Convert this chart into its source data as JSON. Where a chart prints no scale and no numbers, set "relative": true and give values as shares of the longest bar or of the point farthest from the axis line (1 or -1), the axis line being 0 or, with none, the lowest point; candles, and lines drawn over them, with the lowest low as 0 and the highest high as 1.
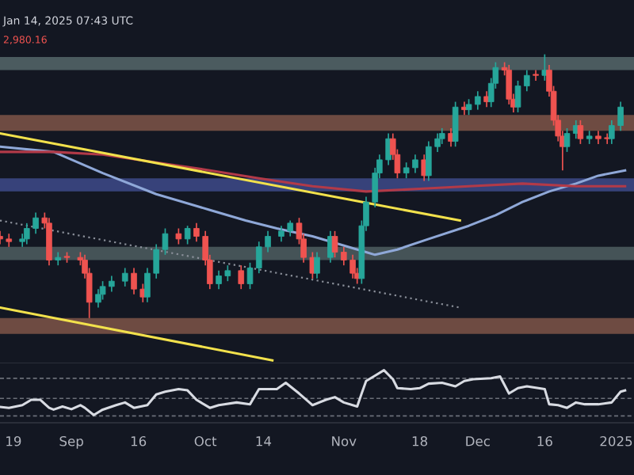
{
  "chart_data": [
    {
      "type": "candlestick",
      "relative": true,
      "annotations": [
        "Jan 14, 2025 07:43 UTC",
        "2,980.16"
      ],
      "tick_labels": false,
      "grid": false,
      "xlim": [
        "2024-08-16",
        "2025-01-05"
      ],
      "x": [
        "2024-08-16",
        "2024-08-18",
        "2024-08-21",
        "2024-08-22",
        "2024-08-24",
        "2024-08-26",
        "2024-08-27",
        "2024-08-29",
        "2024-08-31",
        "2024-09-03",
        "2024-09-04",
        "2024-09-05",
        "2024-09-07",
        "2024-09-08",
        "2024-09-10",
        "2024-09-13",
        "2024-09-15",
        "2024-09-17",
        "2024-09-18",
        "2024-09-20",
        "2024-09-22",
        "2024-09-25",
        "2024-09-27",
        "2024-09-29",
        "2024-10-01",
        "2024-10-02",
        "2024-10-04",
        "2024-10-06",
        "2024-10-09",
        "2024-10-11",
        "2024-10-13",
        "2024-10-15",
        "2024-10-18",
        "2024-10-20",
        "2024-10-22",
        "2024-10-23",
        "2024-10-25",
        "2024-10-26",
        "2024-10-29",
        "2024-10-30",
        "2024-11-01",
        "2024-11-03",
        "2024-11-04",
        "2024-11-05",
        "2024-11-06",
        "2024-11-08",
        "2024-11-09",
        "2024-11-11",
        "2024-11-12",
        "2024-11-13",
        "2024-11-15",
        "2024-11-17",
        "2024-11-19",
        "2024-11-20",
        "2024-11-22",
        "2024-11-23",
        "2024-11-25",
        "2024-11-26",
        "2024-11-28",
        "2024-11-29",
        "2024-12-01",
        "2024-12-03",
        "2024-12-04",
        "2024-12-05",
        "2024-12-07",
        "2024-12-08",
        "2024-12-09",
        "2024-12-10",
        "2024-12-12",
        "2024-12-14",
        "2024-12-16",
        "2024-12-17",
        "2024-12-18",
        "2024-12-19",
        "2024-12-20",
        "2024-12-21",
        "2024-12-23",
        "2024-12-24",
        "2024-12-26",
        "2024-12-28",
        "2024-12-30",
        "2024-12-31",
        "2025-01-02"
      ],
      "ohlc": [
        [
          0.31,
          0.33,
          0.28,
          0.3
        ],
        [
          0.3,
          0.32,
          0.27,
          0.29
        ],
        [
          0.29,
          0.32,
          0.27,
          0.3
        ],
        [
          0.3,
          0.36,
          0.28,
          0.34
        ],
        [
          0.34,
          0.4,
          0.32,
          0.38
        ],
        [
          0.38,
          0.4,
          0.34,
          0.36
        ],
        [
          0.36,
          0.38,
          0.2,
          0.22
        ],
        [
          0.22,
          0.25,
          0.2,
          0.23
        ],
        [
          0.23,
          0.25,
          0.21,
          0.23
        ],
        [
          0.23,
          0.25,
          0.2,
          0.22
        ],
        [
          0.22,
          0.24,
          0.15,
          0.17
        ],
        [
          0.17,
          0.19,
          0.0,
          0.06
        ],
        [
          0.06,
          0.11,
          0.04,
          0.09
        ],
        [
          0.09,
          0.14,
          0.07,
          0.12
        ],
        [
          0.12,
          0.16,
          0.1,
          0.14
        ],
        [
          0.14,
          0.19,
          0.12,
          0.17
        ],
        [
          0.17,
          0.19,
          0.09,
          0.11
        ],
        [
          0.11,
          0.13,
          0.06,
          0.08
        ],
        [
          0.08,
          0.19,
          0.06,
          0.17
        ],
        [
          0.17,
          0.28,
          0.15,
          0.26
        ],
        [
          0.26,
          0.34,
          0.24,
          0.32
        ],
        [
          0.32,
          0.34,
          0.28,
          0.3
        ],
        [
          0.3,
          0.35,
          0.28,
          0.34
        ],
        [
          0.34,
          0.36,
          0.29,
          0.31
        ],
        [
          0.31,
          0.33,
          0.2,
          0.22
        ],
        [
          0.22,
          0.24,
          0.11,
          0.13
        ],
        [
          0.13,
          0.18,
          0.11,
          0.16
        ],
        [
          0.16,
          0.2,
          0.14,
          0.18
        ],
        [
          0.18,
          0.2,
          0.11,
          0.13
        ],
        [
          0.13,
          0.21,
          0.11,
          0.19
        ],
        [
          0.19,
          0.29,
          0.17,
          0.27
        ],
        [
          0.27,
          0.33,
          0.25,
          0.31
        ],
        [
          0.31,
          0.35,
          0.29,
          0.33
        ],
        [
          0.33,
          0.37,
          0.31,
          0.36
        ],
        [
          0.36,
          0.38,
          0.28,
          0.3
        ],
        [
          0.3,
          0.32,
          0.21,
          0.23
        ],
        [
          0.23,
          0.25,
          0.15,
          0.17
        ],
        [
          0.17,
          0.25,
          0.15,
          0.23
        ],
        [
          0.23,
          0.33,
          0.21,
          0.31
        ],
        [
          0.31,
          0.33,
          0.23,
          0.25
        ],
        [
          0.25,
          0.27,
          0.2,
          0.22
        ],
        [
          0.22,
          0.24,
          0.15,
          0.17
        ],
        [
          0.17,
          0.19,
          0.13,
          0.15
        ],
        [
          0.15,
          0.37,
          0.13,
          0.35
        ],
        [
          0.35,
          0.46,
          0.33,
          0.44
        ],
        [
          0.44,
          0.57,
          0.42,
          0.55
        ],
        [
          0.55,
          0.62,
          0.53,
          0.6
        ],
        [
          0.6,
          0.7,
          0.58,
          0.68
        ],
        [
          0.68,
          0.7,
          0.6,
          0.62
        ],
        [
          0.62,
          0.64,
          0.53,
          0.55
        ],
        [
          0.55,
          0.59,
          0.53,
          0.57
        ],
        [
          0.57,
          0.62,
          0.55,
          0.6
        ],
        [
          0.6,
          0.62,
          0.52,
          0.54
        ],
        [
          0.54,
          0.67,
          0.52,
          0.65
        ],
        [
          0.65,
          0.7,
          0.63,
          0.68
        ],
        [
          0.68,
          0.72,
          0.66,
          0.7
        ],
        [
          0.7,
          0.72,
          0.65,
          0.67
        ],
        [
          0.67,
          0.82,
          0.65,
          0.8
        ],
        [
          0.8,
          0.82,
          0.77,
          0.79
        ],
        [
          0.79,
          0.83,
          0.77,
          0.81
        ],
        [
          0.81,
          0.86,
          0.79,
          0.84
        ],
        [
          0.84,
          0.86,
          0.8,
          0.82
        ],
        [
          0.82,
          0.91,
          0.8,
          0.89
        ],
        [
          0.89,
          0.97,
          0.87,
          0.95
        ],
        [
          0.95,
          0.97,
          0.92,
          0.94
        ],
        [
          0.94,
          0.96,
          0.81,
          0.83
        ],
        [
          0.83,
          0.85,
          0.78,
          0.8
        ],
        [
          0.8,
          0.9,
          0.78,
          0.88
        ],
        [
          0.88,
          0.94,
          0.86,
          0.92
        ],
        [
          0.92,
          0.94,
          0.9,
          0.92
        ],
        [
          0.92,
          1.0,
          0.9,
          0.94
        ],
        [
          0.94,
          0.96,
          0.84,
          0.86
        ],
        [
          0.86,
          0.88,
          0.73,
          0.75
        ],
        [
          0.75,
          0.77,
          0.67,
          0.69
        ],
        [
          0.69,
          0.71,
          0.56,
          0.65
        ],
        [
          0.65,
          0.72,
          0.63,
          0.7
        ],
        [
          0.7,
          0.75,
          0.68,
          0.73
        ],
        [
          0.73,
          0.75,
          0.66,
          0.68
        ],
        [
          0.68,
          0.71,
          0.66,
          0.69
        ],
        [
          0.69,
          0.71,
          0.66,
          0.68
        ],
        [
          0.68,
          0.7,
          0.66,
          0.68
        ],
        [
          0.68,
          0.75,
          0.66,
          0.73
        ],
        [
          0.73,
          0.82,
          0.71,
          0.8
        ]
      ],
      "colors": [
        "#ef5350",
        "#ef5350",
        "#26a69a",
        "#26a69a",
        "#26a69a",
        "#ef5350",
        "#ef5350",
        "#26a69a",
        "#ef5350",
        "#ef5350",
        "#ef5350",
        "#ef5350",
        "#26a69a",
        "#26a69a",
        "#26a69a",
        "#26a69a",
        "#ef5350",
        "#ef5350",
        "#26a69a",
        "#26a69a",
        "#26a69a",
        "#ef5350",
        "#26a69a",
        "#ef5350",
        "#ef5350",
        "#ef5350",
        "#26a69a",
        "#26a69a",
        "#ef5350",
        "#26a69a",
        "#26a69a",
        "#26a69a",
        "#26a69a",
        "#26a69a",
        "#ef5350",
        "#ef5350",
        "#ef5350",
        "#26a69a",
        "#26a69a",
        "#ef5350",
        "#ef5350",
        "#ef5350",
        "#ef5350",
        "#26a69a",
        "#26a69a",
        "#26a69a",
        "#26a69a",
        "#26a69a",
        "#ef5350",
        "#ef5350",
        "#26a69a",
        "#26a69a",
        "#ef5350",
        "#26a69a",
        "#26a69a",
        "#26a69a",
        "#ef5350",
        "#26a69a",
        "#ef5350",
        "#26a69a",
        "#26a69a",
        "#ef5350",
        "#26a69a",
        "#26a69a",
        "#ef5350",
        "#ef5350",
        "#ef5350",
        "#26a69a",
        "#26a69a",
        "#ef5350",
        "#26a69a",
        "#ef5350",
        "#ef5350",
        "#ef5350",
        "#ef5350",
        "#26a69a",
        "#26a69a",
        "#ef5350",
        "#26a69a",
        "#ef5350",
        "#ef5350",
        "#26a69a",
        "#26a69a"
      ],
      "bands": [
        {
          "axis": "y",
          "from": 0.94,
          "to": 0.99,
          "color": "#56676a"
        },
        {
          "axis": "y",
          "from": 0.71,
          "to": 0.77,
          "color": "#7f5548"
        },
        {
          "axis": "y",
          "from": 0.48,
          "to": 0.53,
          "color": "#3e4a8a"
        },
        {
          "axis": "y",
          "from": 0.22,
          "to": 0.27,
          "color": "#4f5e60"
        },
        {
          "axis": "y",
          "from": -0.06,
          "to": 0.0,
          "color": "#7f5548"
        }
      ],
      "series": [
        {
          "type": "line",
          "color": "#8fa8d8",
          "x": [
            "2024-08-16",
            "2024-08-28",
            "2024-09-08",
            "2024-09-20",
            "2024-10-02",
            "2024-10-10",
            "2024-10-17",
            "2024-10-25",
            "2024-10-31",
            "2024-11-06",
            "2024-11-08",
            "2024-11-13",
            "2024-11-20",
            "2024-11-29",
            "2024-12-05",
            "2024-12-11",
            "2024-12-17",
            "2024-12-23",
            "2024-12-28",
            "2025-01-03"
          ],
          "values": [
            0.65,
            0.63,
            0.55,
            0.47,
            0.41,
            0.37,
            0.34,
            0.31,
            0.28,
            0.25,
            0.24,
            0.26,
            0.3,
            0.35,
            0.39,
            0.44,
            0.48,
            0.51,
            0.54,
            0.56
          ]
        },
        {
          "type": "line",
          "color": "#b23a48",
          "x": [
            "2024-08-16",
            "2024-08-28",
            "2024-09-08",
            "2024-09-20",
            "2024-10-02",
            "2024-10-13",
            "2024-10-25",
            "2024-11-06",
            "2024-11-18",
            "2024-11-29",
            "2024-12-11",
            "2024-12-23",
            "2025-01-03"
          ],
          "values": [
            0.63,
            0.63,
            0.62,
            0.59,
            0.56,
            0.53,
            0.5,
            0.48,
            0.49,
            0.5,
            0.51,
            0.5,
            0.5
          ]
        },
        {
          "type": "line",
          "color": "#f2e14c",
          "x": [
            "2024-08-16",
            "2024-11-27"
          ],
          "values": [
            0.7,
            0.37
          ]
        },
        {
          "type": "line",
          "color": "#f2e14c",
          "x": [
            "2024-08-16",
            "2024-10-16"
          ],
          "values": [
            0.04,
            -0.16
          ]
        },
        {
          "type": "line",
          "color": "#8a8f99",
          "line_style": "dotted",
          "x": [
            "2024-08-16",
            "2024-11-27"
          ],
          "values": [
            0.37,
            0.04
          ]
        }
      ]
    },
    {
      "type": "line",
      "relative": true,
      "tick_labels": "x",
      "grid": false,
      "xlim": [
        "2024-08-16",
        "2025-01-05"
      ],
      "xticks": [
        {
          "value": "2024-08-19",
          "label": "19"
        },
        {
          "value": "2024-09-01",
          "label": "Sep"
        },
        {
          "value": "2024-09-16",
          "label": "16"
        },
        {
          "value": "2024-10-01",
          "label": "Oct"
        },
        {
          "value": "2024-10-14",
          "label": "14"
        },
        {
          "value": "2024-11-01",
          "label": "Nov"
        },
        {
          "value": "2024-11-18",
          "label": "18"
        },
        {
          "value": "2024-12-01",
          "label": "Dec"
        },
        {
          "value": "2024-12-16",
          "label": "16"
        },
        {
          "value": "2025-01-01",
          "label": "2025"
        }
      ],
      "ref_lines": [
        {
          "axis": "y",
          "value": 0.82,
          "color": "#6b6f78",
          "line_style": "dashed"
        },
        {
          "axis": "y",
          "value": 0.37,
          "color": "#6b6f78",
          "line_style": "dashed"
        },
        {
          "axis": "y",
          "value": -0.02,
          "color": "#6b6f78",
          "line_style": "dashed"
        }
      ],
      "series": [
        {
          "color": "#d8dbe2",
          "x": [
            "2024-08-16",
            "2024-08-18",
            "2024-08-21",
            "2024-08-23",
            "2024-08-25",
            "2024-08-27",
            "2024-08-28",
            "2024-08-30",
            "2024-09-01",
            "2024-09-03",
            "2024-09-04",
            "2024-09-06",
            "2024-09-08",
            "2024-09-11",
            "2024-09-13",
            "2024-09-15",
            "2024-09-18",
            "2024-09-20",
            "2024-09-22",
            "2024-09-25",
            "2024-09-27",
            "2024-09-29",
            "2024-10-02",
            "2024-10-04",
            "2024-10-08",
            "2024-10-11",
            "2024-10-13",
            "2024-10-17",
            "2024-10-19",
            "2024-10-22",
            "2024-10-25",
            "2024-10-28",
            "2024-10-30",
            "2024-11-01",
            "2024-11-04",
            "2024-11-05",
            "2024-11-06",
            "2024-11-08",
            "2024-11-10",
            "2024-11-12",
            "2024-11-13",
            "2024-11-16",
            "2024-11-18",
            "2024-11-20",
            "2024-11-23",
            "2024-11-26",
            "2024-11-28",
            "2024-11-30",
            "2024-12-04",
            "2024-12-06",
            "2024-12-08",
            "2024-12-10",
            "2024-12-12",
            "2024-12-16",
            "2024-12-17",
            "2024-12-19",
            "2024-12-21",
            "2024-12-23",
            "2024-12-25",
            "2024-12-28",
            "2024-12-31",
            "2025-01-02",
            "2025-01-03"
          ],
          "values": [
            0.18,
            0.16,
            0.22,
            0.34,
            0.34,
            0.16,
            0.12,
            0.19,
            0.13,
            0.22,
            0.16,
            0.0,
            0.12,
            0.22,
            0.28,
            0.16,
            0.22,
            0.46,
            0.52,
            0.58,
            0.55,
            0.34,
            0.16,
            0.22,
            0.28,
            0.24,
            0.58,
            0.58,
            0.72,
            0.48,
            0.22,
            0.34,
            0.4,
            0.28,
            0.19,
            0.48,
            0.76,
            0.88,
            1.0,
            0.8,
            0.6,
            0.58,
            0.6,
            0.7,
            0.72,
            0.64,
            0.76,
            0.8,
            0.82,
            0.86,
            0.48,
            0.6,
            0.64,
            0.58,
            0.24,
            0.22,
            0.16,
            0.28,
            0.24,
            0.24,
            0.28,
            0.52,
            0.55
          ]
        }
      ]
    }
  ]
}
